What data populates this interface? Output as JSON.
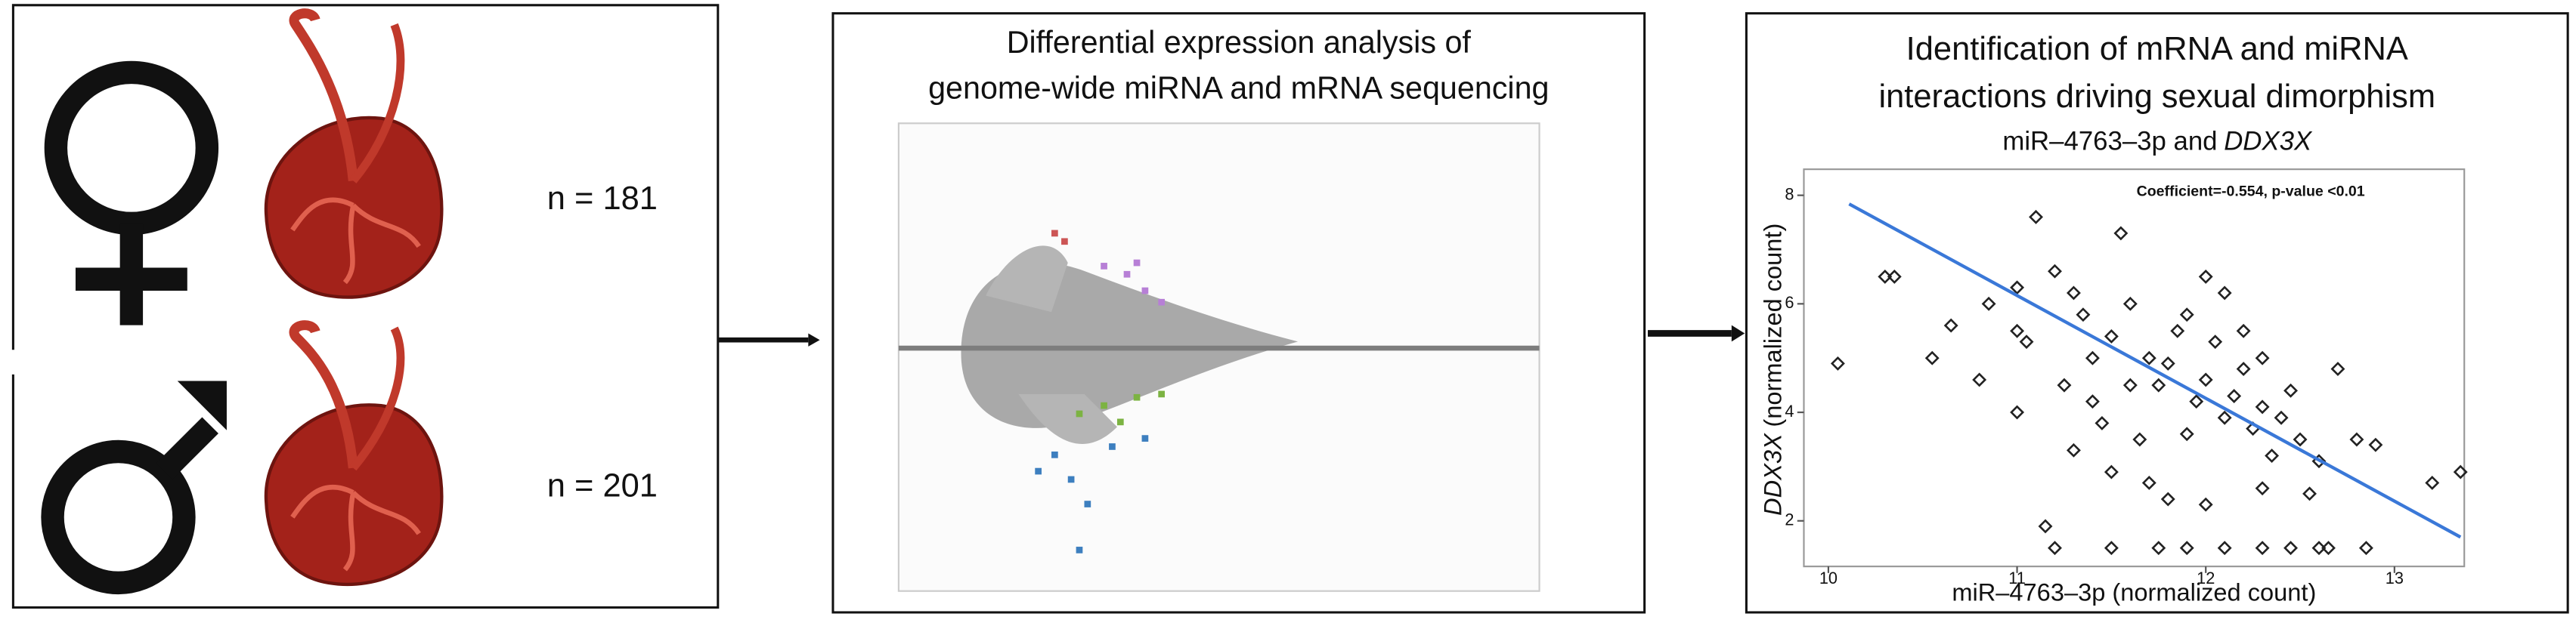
{
  "panels": {
    "left": {
      "female_n": "n = 181",
      "male_n": "n = 201"
    },
    "middle": {
      "title": [
        "Differential expression analysis of",
        "genome-wide miRNA and mRNA sequencing"
      ]
    },
    "right": {
      "title": [
        "Identification of mRNA and miRNA",
        "interactions driving sexual dimorphism"
      ],
      "chart_data": {
        "type": "scatter",
        "subtitle": [
          "miR–4763–3p and",
          "DDX3X"
        ],
        "annotation": "Coefficient=-0.554, p-value <0.01",
        "x_label": "miR–4763–3p (normalized count)",
        "y_label": [
          "DDX3X",
          "(normalized count)"
        ],
        "xlim": [
          9.87,
          13.37
        ],
        "ylim": [
          1.16,
          8.48
        ],
        "xticks": [
          10,
          11,
          12,
          13
        ],
        "yticks": [
          2,
          4,
          6,
          8
        ],
        "x": [
          10.05,
          10.3,
          10.35,
          10.55,
          10.65,
          10.85,
          10.8,
          11.0,
          11.0,
          11.05,
          11.1,
          11.15,
          11.2,
          11.3,
          11.35,
          11.4,
          11.45,
          11.5,
          11.55,
          11.6,
          11.7,
          11.75,
          11.8,
          11.85,
          11.9,
          11.95,
          12.0,
          12.05,
          12.1,
          12.15,
          12.2,
          12.25,
          12.3,
          12.35,
          12.4,
          12.5,
          12.55,
          12.6,
          12.7,
          12.8,
          12.9,
          13.2,
          13.35,
          11.3,
          11.5,
          11.7,
          11.8,
          12.0,
          12.3,
          11.6,
          11.9,
          12.1,
          11.4,
          11.65,
          12.2,
          12.45,
          11.2,
          11.5,
          11.75,
          11.9,
          12.1,
          12.3,
          12.45,
          12.6,
          12.65,
          12.85,
          11.0,
          11.25,
          12.0,
          12.3
        ],
        "y": [
          4.9,
          6.5,
          6.5,
          5.0,
          5.6,
          6.0,
          4.6,
          6.3,
          5.5,
          5.3,
          7.6,
          1.9,
          6.6,
          6.2,
          5.8,
          4.2,
          3.8,
          5.4,
          7.3,
          6.0,
          5.0,
          4.5,
          4.9,
          5.5,
          3.6,
          4.2,
          4.6,
          5.3,
          3.9,
          4.3,
          4.8,
          3.7,
          4.1,
          3.2,
          3.9,
          3.5,
          2.5,
          3.1,
          4.8,
          3.5,
          3.4,
          2.7,
          2.9,
          3.3,
          2.9,
          2.7,
          2.4,
          2.3,
          2.6,
          4.5,
          5.8,
          6.2,
          5.0,
          3.5,
          5.5,
          4.4,
          1.5,
          1.5,
          1.5,
          1.5,
          1.5,
          1.5,
          1.5,
          1.5,
          1.5,
          1.5,
          4.0,
          4.5,
          6.5,
          5.0
        ],
        "fit": {
          "color": "#3a78d8",
          "x": [
            10.11,
            13.35
          ],
          "y": [
            7.84,
            1.7
          ]
        }
      }
    }
  }
}
